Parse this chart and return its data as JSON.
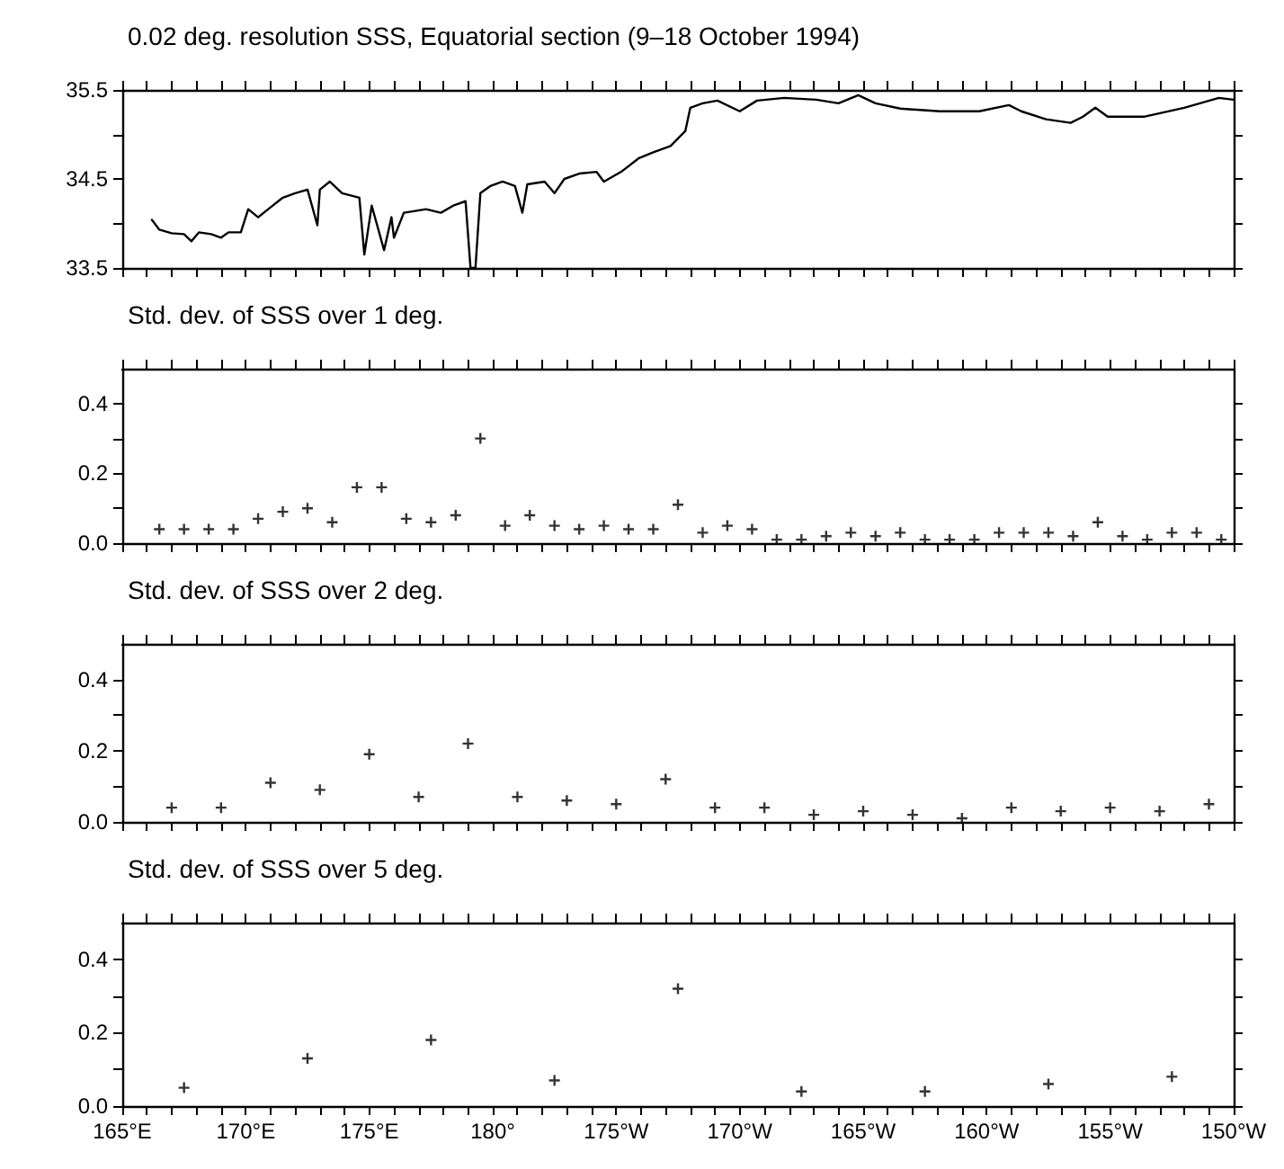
{
  "chart_data": [
    {
      "type": "line",
      "title": "0.02 deg. resolution SSS, Equatorial section (9–18 October 1994)",
      "marker": "none",
      "line_style": "solid",
      "tick_labels": "y",
      "xlim": [
        165,
        210
      ],
      "ylim": [
        33.5,
        35.5
      ],
      "xticks": [
        {
          "value": 165,
          "label": null
        },
        {
          "value": 166,
          "label": null
        },
        {
          "value": 167,
          "label": null
        },
        {
          "value": 168,
          "label": null
        },
        {
          "value": 169,
          "label": null
        },
        {
          "value": 170,
          "label": null
        },
        {
          "value": 171,
          "label": null
        },
        {
          "value": 172,
          "label": null
        },
        {
          "value": 173,
          "label": null
        },
        {
          "value": 174,
          "label": null
        },
        {
          "value": 175,
          "label": null
        },
        {
          "value": 176,
          "label": null
        },
        {
          "value": 177,
          "label": null
        },
        {
          "value": 178,
          "label": null
        },
        {
          "value": 179,
          "label": null
        },
        {
          "value": 180,
          "label": null
        },
        {
          "value": 181,
          "label": null
        },
        {
          "value": 182,
          "label": null
        },
        {
          "value": 183,
          "label": null
        },
        {
          "value": 184,
          "label": null
        },
        {
          "value": 185,
          "label": null
        },
        {
          "value": 186,
          "label": null
        },
        {
          "value": 187,
          "label": null
        },
        {
          "value": 188,
          "label": null
        },
        {
          "value": 189,
          "label": null
        },
        {
          "value": 190,
          "label": null
        },
        {
          "value": 191,
          "label": null
        },
        {
          "value": 192,
          "label": null
        },
        {
          "value": 193,
          "label": null
        },
        {
          "value": 194,
          "label": null
        },
        {
          "value": 195,
          "label": null
        },
        {
          "value": 196,
          "label": null
        },
        {
          "value": 197,
          "label": null
        },
        {
          "value": 198,
          "label": null
        },
        {
          "value": 199,
          "label": null
        },
        {
          "value": 200,
          "label": null
        },
        {
          "value": 201,
          "label": null
        },
        {
          "value": 202,
          "label": null
        },
        {
          "value": 203,
          "label": null
        },
        {
          "value": 204,
          "label": null
        },
        {
          "value": 205,
          "label": null
        },
        {
          "value": 206,
          "label": null
        },
        {
          "value": 207,
          "label": null
        },
        {
          "value": 208,
          "label": null
        },
        {
          "value": 209,
          "label": null
        },
        {
          "value": 210,
          "label": null
        }
      ],
      "yticks": [
        33.5,
        {
          "value": 34,
          "label": null
        },
        34.5,
        {
          "value": 35,
          "label": null
        },
        35.5
      ],
      "series": [
        {
          "color": "#000000",
          "x": [
            166.2,
            166.5,
            167.0,
            167.5,
            167.8,
            168.1,
            168.6,
            169.0,
            169.3,
            169.8,
            170.1,
            170.5,
            171.0,
            171.5,
            172.0,
            172.5,
            172.9,
            173.0,
            173.4,
            173.9,
            174.6,
            174.8,
            175.1,
            175.6,
            175.9,
            176.0,
            176.4,
            177.3,
            177.9,
            178.4,
            178.9,
            179.1,
            179.3,
            179.5,
            179.9,
            180.4,
            180.9,
            181.2,
            181.4,
            182.1,
            182.5,
            182.9,
            183.5,
            184.2,
            184.5,
            185.2,
            185.9,
            186.5,
            187.2,
            187.8,
            188.0,
            188.5,
            189.1,
            190.0,
            190.7,
            191.8,
            193.1,
            194.0,
            194.8,
            195.5,
            196.5,
            198.1,
            199.7,
            200.9,
            201.4,
            202.4,
            203.4,
            203.9,
            204.4,
            204.9,
            206.4,
            208.0,
            209.4,
            210.0
          ],
          "values": [
            34.04,
            33.93,
            33.89,
            33.88,
            33.8,
            33.9,
            33.88,
            33.84,
            33.9,
            33.9,
            34.16,
            34.07,
            34.18,
            34.29,
            34.34,
            34.38,
            33.98,
            34.38,
            34.47,
            34.34,
            34.29,
            33.65,
            34.2,
            33.7,
            34.07,
            33.84,
            34.12,
            34.16,
            34.12,
            34.2,
            34.25,
            33.5,
            33.5,
            34.34,
            34.42,
            34.47,
            34.42,
            34.12,
            34.44,
            34.47,
            34.34,
            34.5,
            34.56,
            34.58,
            34.47,
            34.58,
            34.73,
            34.8,
            34.87,
            35.04,
            35.3,
            35.35,
            35.38,
            35.26,
            35.38,
            35.41,
            35.39,
            35.35,
            35.44,
            35.35,
            35.29,
            35.26,
            35.26,
            35.33,
            35.26,
            35.17,
            35.13,
            35.2,
            35.3,
            35.2,
            35.2,
            35.3,
            35.41,
            35.39
          ]
        }
      ]
    },
    {
      "type": "scatter",
      "title": "Std. dev. of SSS over 1 deg.",
      "marker": "cross",
      "tick_labels": "y",
      "xlim": [
        165,
        210
      ],
      "ylim": [
        0,
        0.5
      ],
      "xticks": [
        {
          "value": 165,
          "label": null
        },
        {
          "value": 166,
          "label": null
        },
        {
          "value": 167,
          "label": null
        },
        {
          "value": 168,
          "label": null
        },
        {
          "value": 169,
          "label": null
        },
        {
          "value": 170,
          "label": null
        },
        {
          "value": 171,
          "label": null
        },
        {
          "value": 172,
          "label": null
        },
        {
          "value": 173,
          "label": null
        },
        {
          "value": 174,
          "label": null
        },
        {
          "value": 175,
          "label": null
        },
        {
          "value": 176,
          "label": null
        },
        {
          "value": 177,
          "label": null
        },
        {
          "value": 178,
          "label": null
        },
        {
          "value": 179,
          "label": null
        },
        {
          "value": 180,
          "label": null
        },
        {
          "value": 181,
          "label": null
        },
        {
          "value": 182,
          "label": null
        },
        {
          "value": 183,
          "label": null
        },
        {
          "value": 184,
          "label": null
        },
        {
          "value": 185,
          "label": null
        },
        {
          "value": 186,
          "label": null
        },
        {
          "value": 187,
          "label": null
        },
        {
          "value": 188,
          "label": null
        },
        {
          "value": 189,
          "label": null
        },
        {
          "value": 190,
          "label": null
        },
        {
          "value": 191,
          "label": null
        },
        {
          "value": 192,
          "label": null
        },
        {
          "value": 193,
          "label": null
        },
        {
          "value": 194,
          "label": null
        },
        {
          "value": 195,
          "label": null
        },
        {
          "value": 196,
          "label": null
        },
        {
          "value": 197,
          "label": null
        },
        {
          "value": 198,
          "label": null
        },
        {
          "value": 199,
          "label": null
        },
        {
          "value": 200,
          "label": null
        },
        {
          "value": 201,
          "label": null
        },
        {
          "value": 202,
          "label": null
        },
        {
          "value": 203,
          "label": null
        },
        {
          "value": 204,
          "label": null
        },
        {
          "value": 205,
          "label": null
        },
        {
          "value": 206,
          "label": null
        },
        {
          "value": 207,
          "label": null
        },
        {
          "value": 208,
          "label": null
        },
        {
          "value": 209,
          "label": null
        },
        {
          "value": 210,
          "label": null
        }
      ],
      "yticks": [
        {
          "value": 0,
          "label": "0.0"
        },
        {
          "value": 0.1,
          "label": null
        },
        0.2,
        {
          "value": 0.3,
          "label": null
        },
        0.4
      ],
      "series": [
        {
          "color": "#000000",
          "x": [
            166.5,
            167.5,
            168.5,
            169.5,
            170.5,
            171.5,
            172.5,
            173.5,
            174.5,
            175.5,
            176.5,
            177.5,
            178.5,
            179.5,
            180.5,
            181.5,
            182.5,
            183.5,
            184.5,
            185.5,
            186.5,
            187.5,
            188.5,
            189.5,
            190.5,
            191.5,
            192.5,
            193.5,
            194.5,
            195.5,
            196.5,
            197.5,
            198.5,
            199.5,
            200.5,
            201.5,
            202.5,
            203.5,
            204.5,
            205.5,
            206.5,
            207.5,
            208.5,
            209.5
          ],
          "values": [
            0.04,
            0.04,
            0.04,
            0.04,
            0.07,
            0.09,
            0.1,
            0.06,
            0.16,
            0.16,
            0.07,
            0.06,
            0.08,
            0.3,
            0.05,
            0.08,
            0.05,
            0.04,
            0.05,
            0.04,
            0.04,
            0.11,
            0.03,
            0.05,
            0.04,
            0.01,
            0.01,
            0.02,
            0.03,
            0.02,
            0.03,
            0.01,
            0.01,
            0.01,
            0.03,
            0.03,
            0.03,
            0.02,
            0.06,
            0.02,
            0.01,
            0.03,
            0.03,
            0.01
          ]
        }
      ]
    },
    {
      "type": "scatter",
      "title": "Std. dev. of SSS over 2 deg.",
      "marker": "cross",
      "tick_labels": "y",
      "xlim": [
        165,
        210
      ],
      "ylim": [
        0,
        0.5
      ],
      "xticks": [
        {
          "value": 165,
          "label": null
        },
        {
          "value": 166,
          "label": null
        },
        {
          "value": 167,
          "label": null
        },
        {
          "value": 168,
          "label": null
        },
        {
          "value": 169,
          "label": null
        },
        {
          "value": 170,
          "label": null
        },
        {
          "value": 171,
          "label": null
        },
        {
          "value": 172,
          "label": null
        },
        {
          "value": 173,
          "label": null
        },
        {
          "value": 174,
          "label": null
        },
        {
          "value": 175,
          "label": null
        },
        {
          "value": 176,
          "label": null
        },
        {
          "value": 177,
          "label": null
        },
        {
          "value": 178,
          "label": null
        },
        {
          "value": 179,
          "label": null
        },
        {
          "value": 180,
          "label": null
        },
        {
          "value": 181,
          "label": null
        },
        {
          "value": 182,
          "label": null
        },
        {
          "value": 183,
          "label": null
        },
        {
          "value": 184,
          "label": null
        },
        {
          "value": 185,
          "label": null
        },
        {
          "value": 186,
          "label": null
        },
        {
          "value": 187,
          "label": null
        },
        {
          "value": 188,
          "label": null
        },
        {
          "value": 189,
          "label": null
        },
        {
          "value": 190,
          "label": null
        },
        {
          "value": 191,
          "label": null
        },
        {
          "value": 192,
          "label": null
        },
        {
          "value": 193,
          "label": null
        },
        {
          "value": 194,
          "label": null
        },
        {
          "value": 195,
          "label": null
        },
        {
          "value": 196,
          "label": null
        },
        {
          "value": 197,
          "label": null
        },
        {
          "value": 198,
          "label": null
        },
        {
          "value": 199,
          "label": null
        },
        {
          "value": 200,
          "label": null
        },
        {
          "value": 201,
          "label": null
        },
        {
          "value": 202,
          "label": null
        },
        {
          "value": 203,
          "label": null
        },
        {
          "value": 204,
          "label": null
        },
        {
          "value": 205,
          "label": null
        },
        {
          "value": 206,
          "label": null
        },
        {
          "value": 207,
          "label": null
        },
        {
          "value": 208,
          "label": null
        },
        {
          "value": 209,
          "label": null
        },
        {
          "value": 210,
          "label": null
        }
      ],
      "yticks": [
        {
          "value": 0,
          "label": "0.0"
        },
        {
          "value": 0.1,
          "label": null
        },
        0.2,
        {
          "value": 0.3,
          "label": null
        },
        0.4
      ],
      "series": [
        {
          "color": "#000000",
          "x": [
            167,
            169,
            171,
            173,
            175,
            177,
            179,
            181,
            183,
            185,
            187,
            189,
            191,
            193,
            195,
            197,
            199,
            201,
            203,
            205,
            207,
            209
          ],
          "values": [
            0.04,
            0.04,
            0.11,
            0.09,
            0.19,
            0.07,
            0.22,
            0.07,
            0.06,
            0.05,
            0.12,
            0.04,
            0.04,
            0.02,
            0.03,
            0.02,
            0.01,
            0.04,
            0.03,
            0.04,
            0.03,
            0.05
          ]
        }
      ]
    },
    {
      "type": "scatter",
      "title": "Std. dev. of SSS over 5 deg.",
      "marker": "cross",
      "xlim": [
        165,
        210
      ],
      "ylim": [
        0,
        0.5
      ],
      "xticks": [
        {
          "value": 165,
          "label": "165°E"
        },
        {
          "value": 166,
          "label": null
        },
        {
          "value": 167,
          "label": null
        },
        {
          "value": 168,
          "label": null
        },
        {
          "value": 169,
          "label": null
        },
        {
          "value": 170,
          "label": "170°E"
        },
        {
          "value": 171,
          "label": null
        },
        {
          "value": 172,
          "label": null
        },
        {
          "value": 173,
          "label": null
        },
        {
          "value": 174,
          "label": null
        },
        {
          "value": 175,
          "label": "175°E"
        },
        {
          "value": 176,
          "label": null
        },
        {
          "value": 177,
          "label": null
        },
        {
          "value": 178,
          "label": null
        },
        {
          "value": 179,
          "label": null
        },
        {
          "value": 180,
          "label": "180°"
        },
        {
          "value": 181,
          "label": null
        },
        {
          "value": 182,
          "label": null
        },
        {
          "value": 183,
          "label": null
        },
        {
          "value": 184,
          "label": null
        },
        {
          "value": 185,
          "label": "175°W"
        },
        {
          "value": 186,
          "label": null
        },
        {
          "value": 187,
          "label": null
        },
        {
          "value": 188,
          "label": null
        },
        {
          "value": 189,
          "label": null
        },
        {
          "value": 190,
          "label": "170°W"
        },
        {
          "value": 191,
          "label": null
        },
        {
          "value": 192,
          "label": null
        },
        {
          "value": 193,
          "label": null
        },
        {
          "value": 194,
          "label": null
        },
        {
          "value": 195,
          "label": "165°W"
        },
        {
          "value": 196,
          "label": null
        },
        {
          "value": 197,
          "label": null
        },
        {
          "value": 198,
          "label": null
        },
        {
          "value": 199,
          "label": null
        },
        {
          "value": 200,
          "label": "160°W"
        },
        {
          "value": 201,
          "label": null
        },
        {
          "value": 202,
          "label": null
        },
        {
          "value": 203,
          "label": null
        },
        {
          "value": 204,
          "label": null
        },
        {
          "value": 205,
          "label": "155°W"
        },
        {
          "value": 206,
          "label": null
        },
        {
          "value": 207,
          "label": null
        },
        {
          "value": 208,
          "label": null
        },
        {
          "value": 209,
          "label": null
        },
        {
          "value": 210,
          "label": "150°W"
        }
      ],
      "yticks": [
        {
          "value": 0,
          "label": "0.0"
        },
        {
          "value": 0.1,
          "label": null
        },
        0.2,
        {
          "value": 0.3,
          "label": null
        },
        0.4
      ],
      "series": [
        {
          "color": "#000000",
          "x": [
            167.5,
            172.5,
            177.5,
            182.5,
            187.5,
            192.5,
            197.5,
            202.5,
            207.5
          ],
          "values": [
            0.05,
            0.13,
            0.18,
            0.07,
            0.32,
            0.04,
            0.04,
            0.06,
            0.08
          ]
        }
      ]
    }
  ]
}
